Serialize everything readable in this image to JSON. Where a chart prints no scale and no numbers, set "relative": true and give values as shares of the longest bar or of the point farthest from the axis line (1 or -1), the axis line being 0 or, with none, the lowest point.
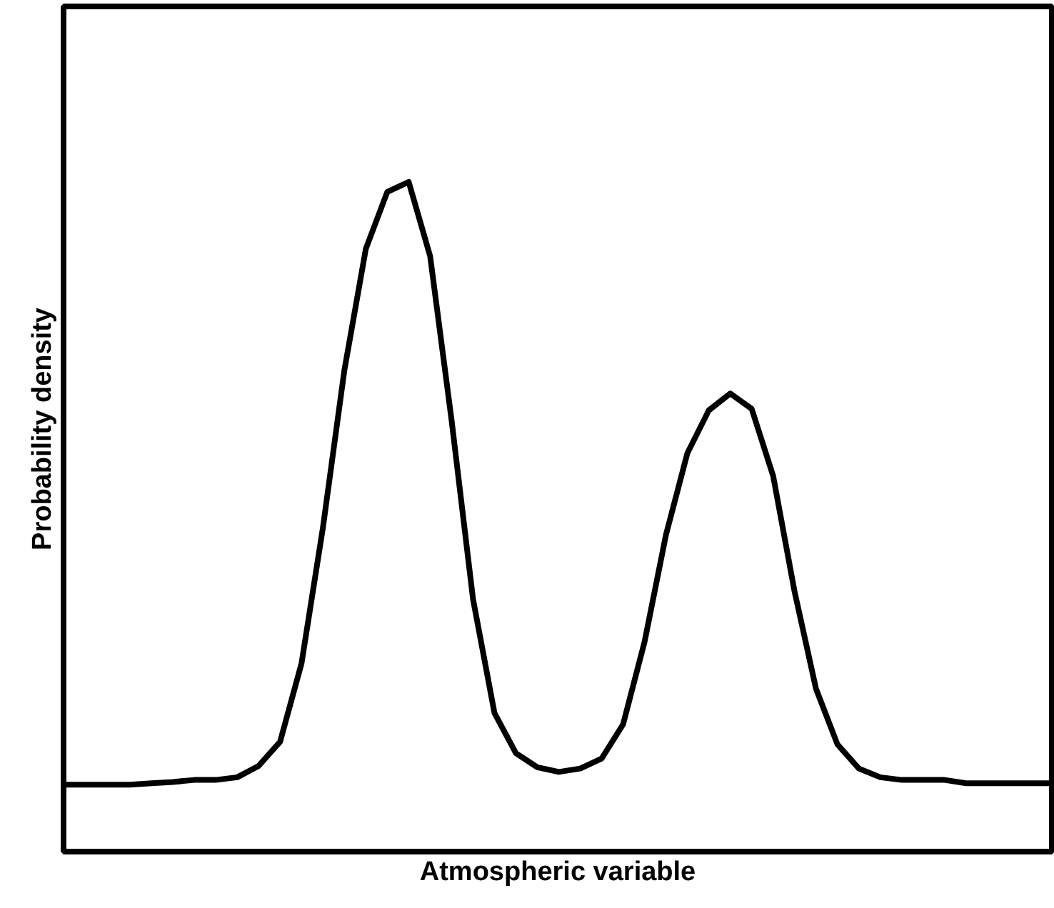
{
  "chart_data": {
    "type": "line",
    "relative": true,
    "xlabel": "Atmospheric variable",
    "ylabel": "Probability density",
    "categories": [
      null,
      null,
      null,
      null,
      null,
      null,
      null,
      null,
      null,
      null,
      null,
      null,
      null,
      null,
      null,
      null,
      null,
      null,
      null,
      null,
      null,
      null,
      null,
      null,
      null,
      null,
      null,
      null,
      null,
      null,
      null,
      null,
      null,
      null,
      null,
      null,
      null,
      null,
      null,
      null,
      null,
      null,
      null,
      null,
      null,
      null,
      null
    ],
    "series": [
      {
        "color": "#000000",
        "values": [
          0.1,
          0.1,
          0.1,
          0.1,
          0.102,
          0.104,
          0.107,
          0.107,
          0.111,
          0.128,
          0.164,
          0.281,
          0.484,
          0.719,
          0.9,
          0.985,
          1.0,
          0.889,
          0.644,
          0.377,
          0.207,
          0.147,
          0.126,
          0.119,
          0.124,
          0.139,
          0.19,
          0.313,
          0.473,
          0.595,
          0.659,
          0.684,
          0.661,
          0.561,
          0.388,
          0.243,
          0.16,
          0.124,
          0.111,
          0.107,
          0.107,
          0.107,
          0.102,
          0.102,
          0.102,
          0.102,
          0.102
        ]
      }
    ],
    "line_style": "solid",
    "tick_labels": false
  }
}
